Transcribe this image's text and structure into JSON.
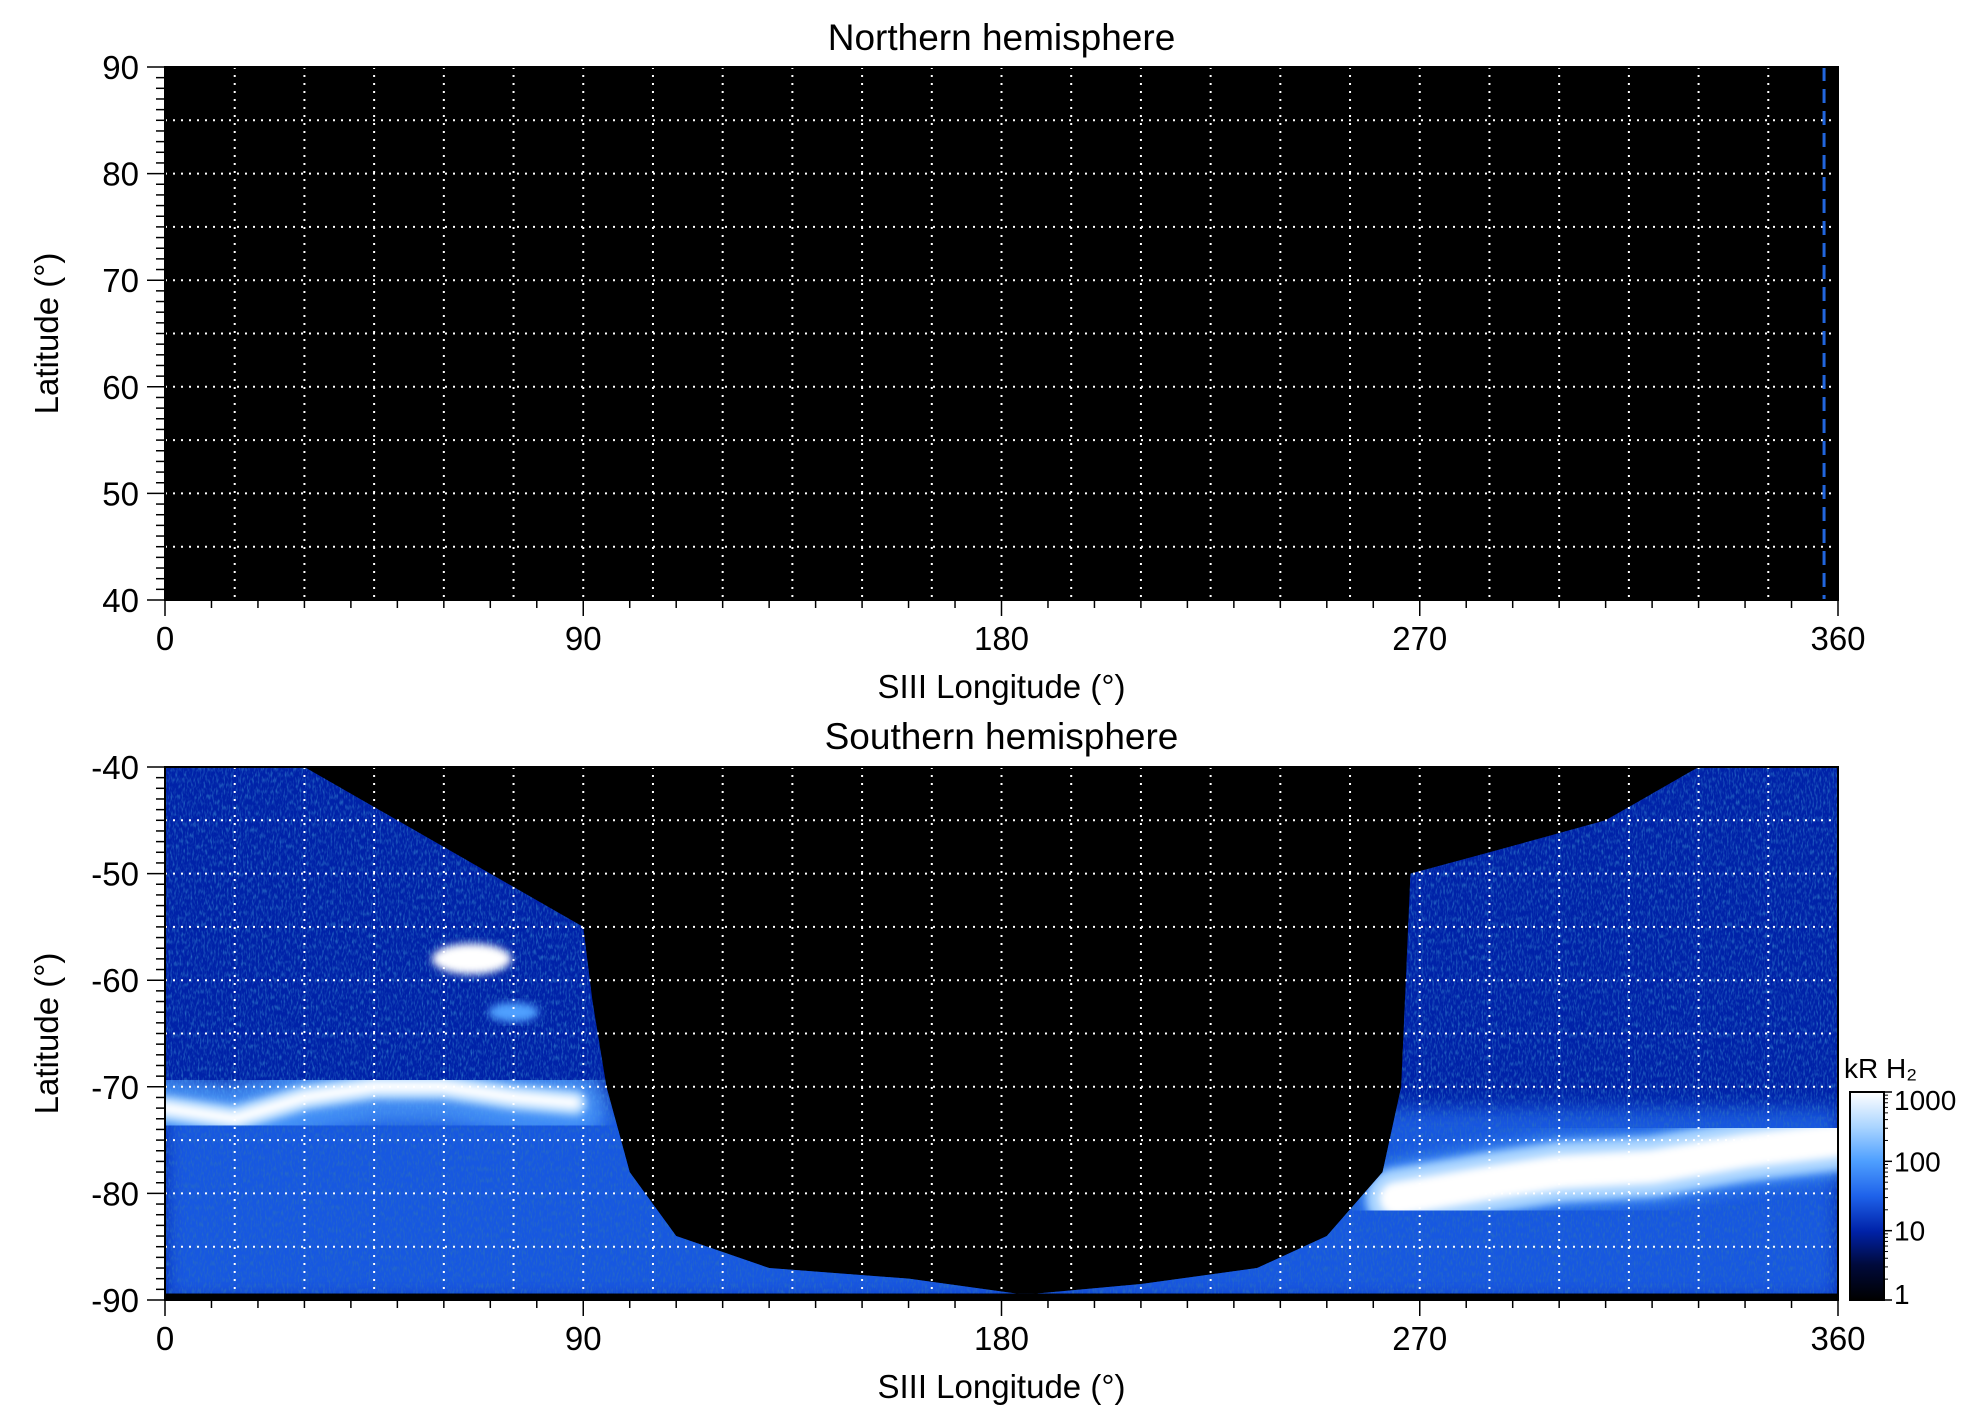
{
  "colors": {
    "background": "#000000",
    "grid": "#ffffff",
    "boundary_dash": "#2266dd",
    "colormap": [
      "#000000",
      "#000a3c",
      "#0022a8",
      "#1e62ea",
      "#4fa0ff",
      "#a9d4ff",
      "#ffffff"
    ]
  },
  "chart_data": [
    {
      "type": "heatmap",
      "title": "Northern hemisphere",
      "xlabel": "SIII Longitude (°)",
      "ylabel": "Latitude (°)",
      "xlim": [
        0,
        360
      ],
      "ylim": [
        40,
        90
      ],
      "xticks": [
        0,
        90,
        180,
        270,
        360
      ],
      "xtick_labels": [
        "0",
        "90",
        "180",
        "270",
        "360"
      ],
      "yticks": [
        40,
        50,
        60,
        70,
        80,
        90
      ],
      "ytick_labels": [
        "40",
        "50",
        "60",
        "70",
        "80",
        "90"
      ],
      "grid": true,
      "grid_step_lon": 15,
      "grid_step_lat": 5,
      "coverage": "none",
      "boundary_line": {
        "style": "dashed",
        "longitude": 357,
        "lat_range": [
          40,
          90
        ]
      }
    },
    {
      "type": "heatmap",
      "title": "Southern hemisphere",
      "xlabel": "SIII Longitude (°)",
      "ylabel": "Latitude (°)",
      "xlim": [
        0,
        360
      ],
      "ylim": [
        -90,
        -40
      ],
      "xticks": [
        0,
        90,
        180,
        270,
        360
      ],
      "xtick_labels": [
        "0",
        "90",
        "180",
        "270",
        "360"
      ],
      "yticks": [
        -90,
        -80,
        -70,
        -60,
        -50,
        -40
      ],
      "ytick_labels": [
        "-90",
        "-80",
        "-70",
        "-60",
        "-50",
        "-40"
      ],
      "grid": true,
      "grid_step_lon": 15,
      "grid_step_lat": 5,
      "coverage_boundary": [
        [
          0,
          -40
        ],
        [
          30,
          -40
        ],
        [
          70,
          -50
        ],
        [
          90,
          -55
        ],
        [
          92,
          -62
        ],
        [
          95,
          -70
        ],
        [
          100,
          -78
        ],
        [
          110,
          -84
        ],
        [
          130,
          -87
        ],
        [
          160,
          -88
        ],
        [
          185,
          -89.5
        ],
        [
          210,
          -88.5
        ],
        [
          235,
          -87
        ],
        [
          250,
          -84
        ],
        [
          262,
          -78
        ],
        [
          266,
          -70
        ],
        [
          267,
          -60
        ],
        [
          268,
          -50
        ],
        [
          285,
          -48
        ],
        [
          310,
          -45
        ],
        [
          330,
          -40
        ],
        [
          360,
          -40
        ]
      ],
      "auroral_oval": [
        [
          0,
          -72
        ],
        [
          15,
          -73
        ],
        [
          30,
          -71
        ],
        [
          45,
          -70
        ],
        [
          60,
          -70
        ],
        [
          75,
          -71
        ],
        [
          88,
          -71.5
        ],
        [
          265,
          -80.5
        ],
        [
          285,
          -79
        ],
        [
          300,
          -78
        ],
        [
          320,
          -77.5
        ],
        [
          340,
          -76
        ],
        [
          360,
          -75
        ]
      ],
      "bright_spots": [
        {
          "lon": 66,
          "lat": -58,
          "kR": 1000
        },
        {
          "lon": 75,
          "lat": -63,
          "kR": 300
        }
      ],
      "colorbar": {
        "title": "kR H₂",
        "scale": "log",
        "range": [
          1,
          1000
        ],
        "ticks": [
          1,
          10,
          100,
          1000
        ],
        "tick_labels": [
          "1",
          "10",
          "100",
          "1000"
        ]
      }
    }
  ]
}
